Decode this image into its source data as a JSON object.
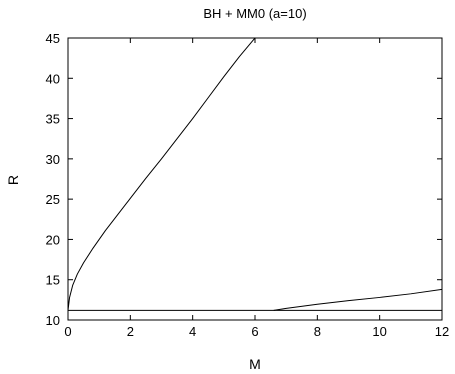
{
  "chart_data": {
    "type": "line",
    "title": "BH + MM0 (a=10)",
    "xlabel": "M",
    "ylabel": "R",
    "xlim": [
      0,
      12
    ],
    "ylim": [
      10,
      45
    ],
    "xticks": [
      0,
      2,
      4,
      6,
      8,
      10,
      12
    ],
    "yticks": [
      10,
      15,
      20,
      25,
      30,
      35,
      40,
      45
    ],
    "grid": false,
    "series": [
      {
        "x": [
          0.0,
          0.05,
          0.15,
          0.3,
          0.5,
          0.8,
          1.2,
          1.6,
          2.0,
          2.5,
          3.0,
          3.5,
          4.0,
          4.5,
          5.0,
          5.5,
          6.0,
          6.5
        ],
        "y": [
          11.2,
          12.8,
          14.3,
          15.7,
          17.1,
          18.9,
          21.1,
          23.1,
          25.1,
          27.6,
          30.0,
          32.5,
          35.0,
          37.6,
          40.2,
          42.7,
          45.0,
          47.3
        ]
      },
      {
        "x": [
          6.6,
          7.0,
          8.0,
          9.0,
          10.0,
          11.0,
          12.0
        ],
        "y": [
          11.2,
          11.45,
          11.95,
          12.4,
          12.8,
          13.25,
          13.8
        ]
      },
      {
        "x": [
          0.0,
          12.0
        ],
        "y": [
          11.2,
          11.2
        ]
      }
    ]
  }
}
